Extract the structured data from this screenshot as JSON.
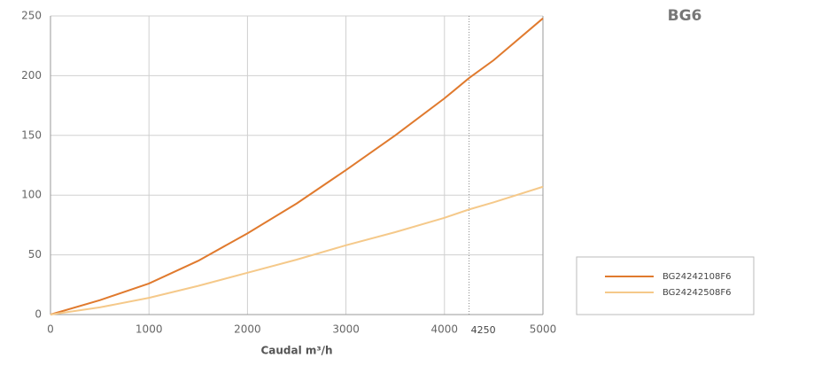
{
  "chart_data": {
    "type": "line",
    "title": "BG6",
    "xlabel": "Caudal m³/h",
    "x": [
      0,
      500,
      1000,
      1500,
      2000,
      2500,
      3000,
      3500,
      4000,
      4250,
      4500,
      5000
    ],
    "series": [
      {
        "name": "BG24242108F6",
        "color": "#e07a2e",
        "values": [
          0,
          12,
          26,
          45,
          68,
          93,
          121,
          150,
          181,
          198,
          213,
          248
        ]
      },
      {
        "name": "BG24242508F6",
        "color": "#f5c98a",
        "values": [
          0,
          6,
          14,
          24,
          35,
          46,
          58,
          69,
          81,
          88,
          94,
          107
        ]
      }
    ],
    "xlim": [
      0,
      5000
    ],
    "xticks": [
      0,
      1000,
      2000,
      3000,
      4000,
      5000
    ],
    "ylim": [
      0,
      250
    ],
    "yticks": [
      0,
      50,
      100,
      150,
      200,
      250
    ],
    "vline": 4250,
    "grid": true
  }
}
